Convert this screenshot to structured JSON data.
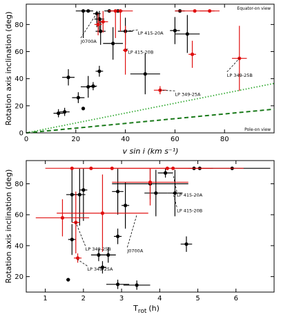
{
  "colors": {
    "black": "#000000",
    "red": "#e01010",
    "green_dotted": "#33aa33",
    "green_dashed": "#1a7a1a"
  },
  "chart_data": [
    {
      "type": "scatter",
      "xlabel": "v sin i (km s⁻¹)",
      "ylabel": "Rotation axis inclination (deg)",
      "xlim": [
        0,
        100
      ],
      "ylim": [
        0,
        95
      ],
      "xticks": [
        "0",
        "20",
        "40",
        "60",
        "80"
      ],
      "yticks": [
        "0",
        "20",
        "40",
        "60",
        "80"
      ],
      "corner_top": "Equator-on view",
      "corner_bottom": "Pole-on view",
      "series": [
        {
          "color": "black",
          "points": [
            {
              "x": 13,
              "y": 14.5,
              "xerr": 2,
              "yerr": 3
            },
            {
              "x": 15.5,
              "y": 15.5,
              "xerr": 2,
              "yerr": 3
            },
            {
              "x": 17,
              "y": 41,
              "xerr": 2.5,
              "yerr": 6
            },
            {
              "x": 21,
              "y": 26,
              "xerr": 2.5,
              "yerr": 4
            },
            {
              "x": 23,
              "y": 18,
              "xerr": 0.5,
              "yerr": 1
            },
            {
              "x": 25,
              "y": 34,
              "xerr": 3,
              "yerr": 8
            },
            {
              "x": 27,
              "y": 34.5,
              "xerr": 1.5,
              "yerr": 3
            },
            {
              "x": 29.5,
              "y": 45.5,
              "xerr": 1.5,
              "yerr": 4
            },
            {
              "x": 23,
              "y": 90,
              "xerr": 3,
              "yerr": 20
            },
            {
              "x": 25,
              "y": 90,
              "xerr": 2,
              "yerr": 0
            },
            {
              "x": 28.5,
              "y": 88,
              "xerr": 1.5,
              "yerr": 10
            },
            {
              "x": 29.5,
              "y": 84,
              "xerr": 2,
              "yerr": 8
            },
            {
              "x": 30,
              "y": 75,
              "xerr": 2,
              "yerr": 10
            },
            {
              "x": 33.5,
              "y": 90,
              "xerr": 2,
              "yerr": 0
            },
            {
              "x": 35,
              "y": 66,
              "xerr": 4,
              "yerr": 12
            },
            {
              "x": 37,
              "y": 90,
              "xerr": 2,
              "yerr": 0
            },
            {
              "x": 40,
              "y": 75,
              "xerr": 3,
              "yerr": 10
            },
            {
              "x": 48,
              "y": 43.5,
              "xerr": 6,
              "yerr": 15
            },
            {
              "x": 60,
              "y": 75.5,
              "xerr": 2,
              "yerr": 10
            },
            {
              "x": 65,
              "y": 73,
              "xerr": 5,
              "yerr": 14
            },
            {
              "x": 62,
              "y": 90,
              "xerr": 2,
              "yerr": 0
            }
          ]
        },
        {
          "color": "red",
          "points": [
            {
              "x": 29,
              "y": 80,
              "xerr": 1.5,
              "yerr": 8
            },
            {
              "x": 31,
              "y": 82,
              "xerr": 2,
              "yerr": 8
            },
            {
              "x": 36,
              "y": 90,
              "xerr": 2.5,
              "yerr": 20
            },
            {
              "x": 38,
              "y": 90,
              "xerr": 5,
              "yerr": 15
            },
            {
              "x": 40,
              "y": 61,
              "xerr": 1,
              "yerr": 18
            },
            {
              "x": 54,
              "y": 31.5,
              "xerr": 2.5,
              "yerr": 3
            },
            {
              "x": 67,
              "y": 58,
              "xerr": 1.5,
              "yerr": 10
            },
            {
              "x": 68,
              "y": 90,
              "xerr": 8,
              "yerr": 0
            },
            {
              "x": 74,
              "y": 90,
              "xerr": 4,
              "yerr": 0
            },
            {
              "x": 86,
              "y": 55,
              "xerr": 3,
              "yerr": 24
            }
          ]
        }
      ],
      "curves": [
        {
          "style": "dotted",
          "color": "green_dotted",
          "x": [
            0,
            100
          ],
          "y": [
            0,
            36.5
          ]
        },
        {
          "style": "dashed",
          "color": "green_dashed",
          "x": [
            0,
            100
          ],
          "y": [
            0,
            17.5
          ]
        }
      ],
      "annotations": [
        {
          "text": "J0700A",
          "x": 22,
          "y": 69,
          "to_x": 28,
          "to_y": 87
        },
        {
          "text": "LP 415-20A",
          "x": 45,
          "y": 75,
          "to_x": 40,
          "to_y": 75
        },
        {
          "text": "LP 415-20B",
          "x": 41,
          "y": 61,
          "to_x": 40,
          "to_y": 61
        },
        {
          "text": "LP 349-25B",
          "x": 81,
          "y": 44,
          "to_x": 86,
          "to_y": 55
        },
        {
          "text": "LP 349-25A",
          "x": 60,
          "y": 30,
          "to_x": 54,
          "to_y": 31.5
        }
      ]
    },
    {
      "type": "scatter",
      "xlabel": "T",
      "xlabel_sub": "rot",
      "xlabel_unit": "(h)",
      "ylabel": "Rotation axis inclination (deg)",
      "xlim": [
        0.5,
        7
      ],
      "ylim": [
        10,
        95
      ],
      "xticks": [
        "1",
        "2",
        "3",
        "4",
        "5",
        "6"
      ],
      "yticks": [
        "20",
        "40",
        "60",
        "80"
      ],
      "series": [
        {
          "color": "black",
          "points": [
            {
              "x": 1.6,
              "y": 18,
              "xerr": 0.05,
              "yerr": 1
            },
            {
              "x": 1.7,
              "y": 44,
              "xerr": 0.1,
              "yerr": 10
            },
            {
              "x": 1.7,
              "y": 73,
              "xerr": 0.15,
              "yerr": 18
            },
            {
              "x": 1.9,
              "y": 73,
              "xerr": 0.15,
              "yerr": 20
            },
            {
              "x": 2.0,
              "y": 76,
              "xerr": 0.1,
              "yerr": 20
            },
            {
              "x": 2.4,
              "y": 34,
              "xerr": 0.2,
              "yerr": 4
            },
            {
              "x": 2.5,
              "y": 26,
              "xerr": 0.1,
              "yerr": 4
            },
            {
              "x": 2.65,
              "y": 34,
              "xerr": 0.2,
              "yerr": 5
            },
            {
              "x": 2.9,
              "y": 15,
              "xerr": 0.3,
              "yerr": 3
            },
            {
              "x": 2.9,
              "y": 46,
              "xerr": 0.1,
              "yerr": 5
            },
            {
              "x": 2.9,
              "y": 75,
              "xerr": 0.15,
              "yerr": 15
            },
            {
              "x": 3.1,
              "y": 66,
              "xerr": 0.1,
              "yerr": 15
            },
            {
              "x": 3.4,
              "y": 14.5,
              "xerr": 0.35,
              "yerr": 3
            },
            {
              "x": 3.75,
              "y": 80,
              "xerr": 1.0,
              "yerr": 10
            },
            {
              "x": 3.9,
              "y": 74,
              "xerr": 0.3,
              "yerr": 15
            },
            {
              "x": 4.15,
              "y": 87,
              "xerr": 0.2,
              "yerr": 3
            },
            {
              "x": 4.4,
              "y": 74,
              "xerr": 0.2,
              "yerr": 15
            },
            {
              "x": 4.7,
              "y": 41,
              "xerr": 0.15,
              "yerr": 5
            },
            {
              "x": 4.9,
              "y": 90,
              "xerr": 0.5,
              "yerr": 0
            },
            {
              "x": 5.05,
              "y": 90,
              "xerr": 0.3,
              "yerr": 0
            },
            {
              "x": 5.9,
              "y": 90,
              "xerr": 1.0,
              "yerr": 0
            }
          ]
        },
        {
          "color": "red",
          "points": [
            {
              "x": 1.45,
              "y": 58,
              "xerr": 0.7,
              "yerr": 12
            },
            {
              "x": 1.7,
              "y": 90,
              "xerr": 0.7,
              "yerr": 0
            },
            {
              "x": 1.8,
              "y": 55,
              "xerr": 0.1,
              "yerr": 20
            },
            {
              "x": 1.85,
              "y": 32,
              "xerr": 0.1,
              "yerr": 3
            },
            {
              "x": 2.2,
              "y": 90,
              "xerr": 0.5,
              "yerr": 0
            },
            {
              "x": 2.5,
              "y": 61,
              "xerr": 1.2,
              "yerr": 25
            },
            {
              "x": 2.75,
              "y": 90,
              "xerr": 0.6,
              "yerr": 0
            },
            {
              "x": 3.75,
              "y": 81,
              "xerr": 1.0,
              "yerr": 15
            },
            {
              "x": 4.2,
              "y": 90,
              "xerr": 2.0,
              "yerr": 0
            },
            {
              "x": 4.35,
              "y": 90,
              "xerr": 1.0,
              "yerr": 0
            }
          ]
        }
      ],
      "annotations": [
        {
          "text": "J0700A",
          "x": 3.15,
          "y": 38,
          "to_x": 3.4,
          "to_y": 60
        },
        {
          "text": "LP 415-20A",
          "x": 4.45,
          "y": 74,
          "to_x": 4.35,
          "to_y": 86
        },
        {
          "text": "LP 415-20B",
          "x": 4.45,
          "y": 64,
          "to_x": 4.35,
          "to_y": 74
        },
        {
          "text": "LP 349-25B",
          "x": 2.05,
          "y": 39,
          "to_x": 1.8,
          "to_y": 55
        },
        {
          "text": "LP 349-25A",
          "x": 2.1,
          "y": 26,
          "to_x": 1.85,
          "to_y": 31
        }
      ]
    }
  ]
}
